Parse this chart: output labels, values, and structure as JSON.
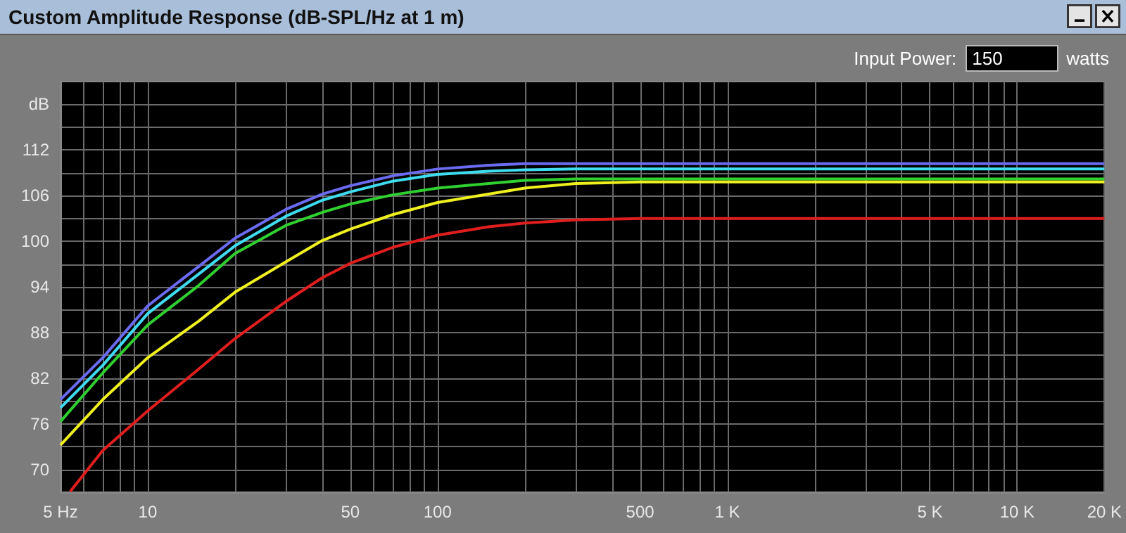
{
  "chart_data": {
    "type": "line",
    "title": "Custom Amplitude Response (dB-SPL/Hz at 1 m)",
    "annotations": [
      "Input Power:",
      "150",
      "watts"
    ],
    "log": "x",
    "grid": true,
    "marker": "none",
    "line_style": "solid",
    "xlim": [
      5,
      20000
    ],
    "ylim": [
      67,
      121
    ],
    "xticks": [
      {
        "value": 5,
        "label": "5 Hz"
      },
      {
        "value": 6,
        "label": null
      },
      {
        "value": 7,
        "label": null
      },
      {
        "value": 8,
        "label": null
      },
      {
        "value": 9,
        "label": null
      },
      {
        "value": 10,
        "label": "10"
      },
      {
        "value": 20,
        "label": null
      },
      {
        "value": 30,
        "label": null
      },
      {
        "value": 40,
        "label": null
      },
      {
        "value": 50,
        "label": "50"
      },
      {
        "value": 60,
        "label": null
      },
      {
        "value": 70,
        "label": null
      },
      {
        "value": 80,
        "label": null
      },
      {
        "value": 90,
        "label": null
      },
      {
        "value": 100,
        "label": "100"
      },
      {
        "value": 200,
        "label": null
      },
      {
        "value": 300,
        "label": null
      },
      {
        "value": 400,
        "label": null
      },
      {
        "value": 500,
        "label": "500"
      },
      {
        "value": 600,
        "label": null
      },
      {
        "value": 700,
        "label": null
      },
      {
        "value": 800,
        "label": null
      },
      {
        "value": 900,
        "label": null
      },
      {
        "value": 1000,
        "label": "1 K"
      },
      {
        "value": 2000,
        "label": null
      },
      {
        "value": 3000,
        "label": null
      },
      {
        "value": 4000,
        "label": null
      },
      {
        "value": 5000,
        "label": "5 K"
      },
      {
        "value": 6000,
        "label": null
      },
      {
        "value": 7000,
        "label": null
      },
      {
        "value": 8000,
        "label": null
      },
      {
        "value": 9000,
        "label": null
      },
      {
        "value": 10000,
        "label": "10 K"
      },
      {
        "value": 20000,
        "label": "20 K"
      }
    ],
    "yticks": [
      70,
      {
        "value": 73,
        "label": null
      },
      76,
      {
        "value": 79,
        "label": null
      },
      82,
      {
        "value": 85,
        "label": null
      },
      88,
      {
        "value": 91,
        "label": null
      },
      94,
      {
        "value": 97,
        "label": null
      },
      100,
      {
        "value": 103,
        "label": null
      },
      106,
      {
        "value": 109,
        "label": null
      },
      112,
      {
        "value": 115,
        "label": null
      },
      {
        "value": 118,
        "label": "dB"
      }
    ],
    "x": [
      5,
      7,
      10,
      15,
      20,
      30,
      40,
      50,
      70,
      100,
      150,
      200,
      300,
      500,
      1000,
      20000
    ],
    "series": [
      {
        "color": "#6b6bf2",
        "values": [
          79.2,
          84.7,
          91.5,
          96.7,
          100.4,
          104.2,
          106.2,
          107.3,
          108.6,
          109.5,
          110.0,
          110.2,
          110.2,
          110.2,
          110.2,
          110.2
        ]
      },
      {
        "color": "#3fdcf0",
        "values": [
          78.1,
          83.7,
          90.5,
          95.7,
          99.4,
          103.3,
          105.4,
          106.5,
          107.9,
          108.8,
          109.2,
          109.4,
          109.5,
          109.5,
          109.5,
          109.5
        ]
      },
      {
        "color": "#2fd02f",
        "values": [
          76.3,
          82.7,
          89.0,
          94.2,
          98.4,
          102.1,
          103.8,
          104.9,
          106.1,
          107.0,
          107.6,
          108.0,
          108.2,
          108.2,
          108.2,
          108.2
        ]
      },
      {
        "color": "#f0f020",
        "values": [
          73.2,
          79.2,
          84.7,
          89.5,
          93.3,
          97.3,
          100.1,
          101.6,
          103.5,
          105.1,
          106.2,
          107.0,
          107.6,
          107.8,
          107.8,
          107.8
        ]
      },
      {
        "color": "#e01e1e",
        "x": [
          5.4,
          7,
          10,
          15,
          20,
          30,
          40,
          50,
          70,
          100,
          150,
          200,
          300,
          500,
          1000,
          20000
        ],
        "values": [
          67.1,
          72.5,
          77.7,
          83.2,
          87.2,
          92.1,
          95.2,
          97.1,
          99.2,
          100.8,
          101.9,
          102.4,
          102.8,
          103.0,
          103.0,
          103.0
        ]
      }
    ]
  }
}
